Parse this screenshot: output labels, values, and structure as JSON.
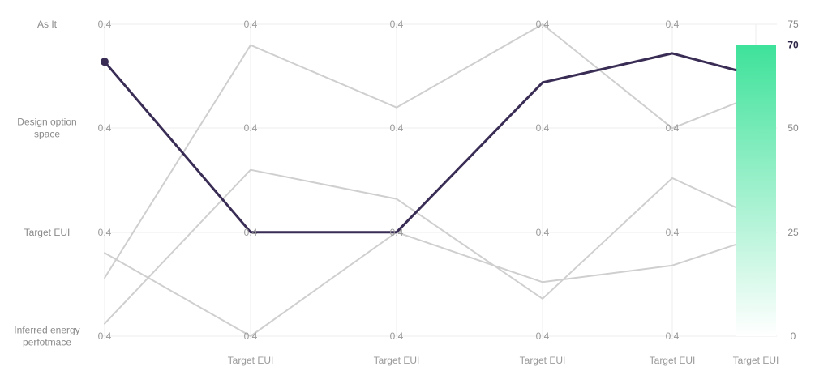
{
  "chart_data": {
    "type": "parallel-coordinates",
    "row_labels": [
      [
        "As It"
      ],
      [
        "Design option",
        "space"
      ],
      [
        "Target EUI"
      ],
      [
        "Inferred energy",
        "perfotmace"
      ]
    ],
    "axes": [
      {
        "label": "",
        "ticks": [
          "0.4",
          "0.4",
          "0.4",
          "0.4"
        ]
      },
      {
        "label": "Target EUI",
        "ticks": [
          "0.4",
          "0.4",
          "0.4",
          "0.4"
        ]
      },
      {
        "label": "Target EUI",
        "ticks": [
          "0.4",
          "0.4",
          "0.4",
          "0.4"
        ]
      },
      {
        "label": "Target EUI",
        "ticks": [
          "0.4",
          "0.4",
          "0.4",
          "0.4"
        ]
      },
      {
        "label": "Target EUI",
        "ticks": [
          "0.4",
          "0.4",
          "0.4",
          "0.4"
        ]
      }
    ],
    "scale": {
      "label": "Target EUI",
      "ticks": [
        "75",
        "50",
        "25",
        "0"
      ],
      "ylim": [
        0,
        75
      ],
      "value": 70,
      "value_label": "70",
      "color_top": "#3ee29a",
      "color_bottom": "#ffffff"
    },
    "series_range": [
      0,
      75
    ],
    "series": [
      {
        "values": [
          14,
          70,
          55,
          75,
          50,
          56
        ],
        "highlight": false
      },
      {
        "values": [
          3,
          40,
          33,
          9,
          38,
          31
        ],
        "highlight": false
      },
      {
        "values": [
          20,
          0,
          25,
          13,
          17,
          22
        ],
        "highlight": false
      },
      {
        "values": [
          66,
          25,
          25,
          61,
          68,
          64
        ],
        "highlight": true
      }
    ],
    "colors": {
      "highlight": "#3a2d55",
      "other": "#cfcfcf",
      "grid": "#ececec"
    }
  }
}
